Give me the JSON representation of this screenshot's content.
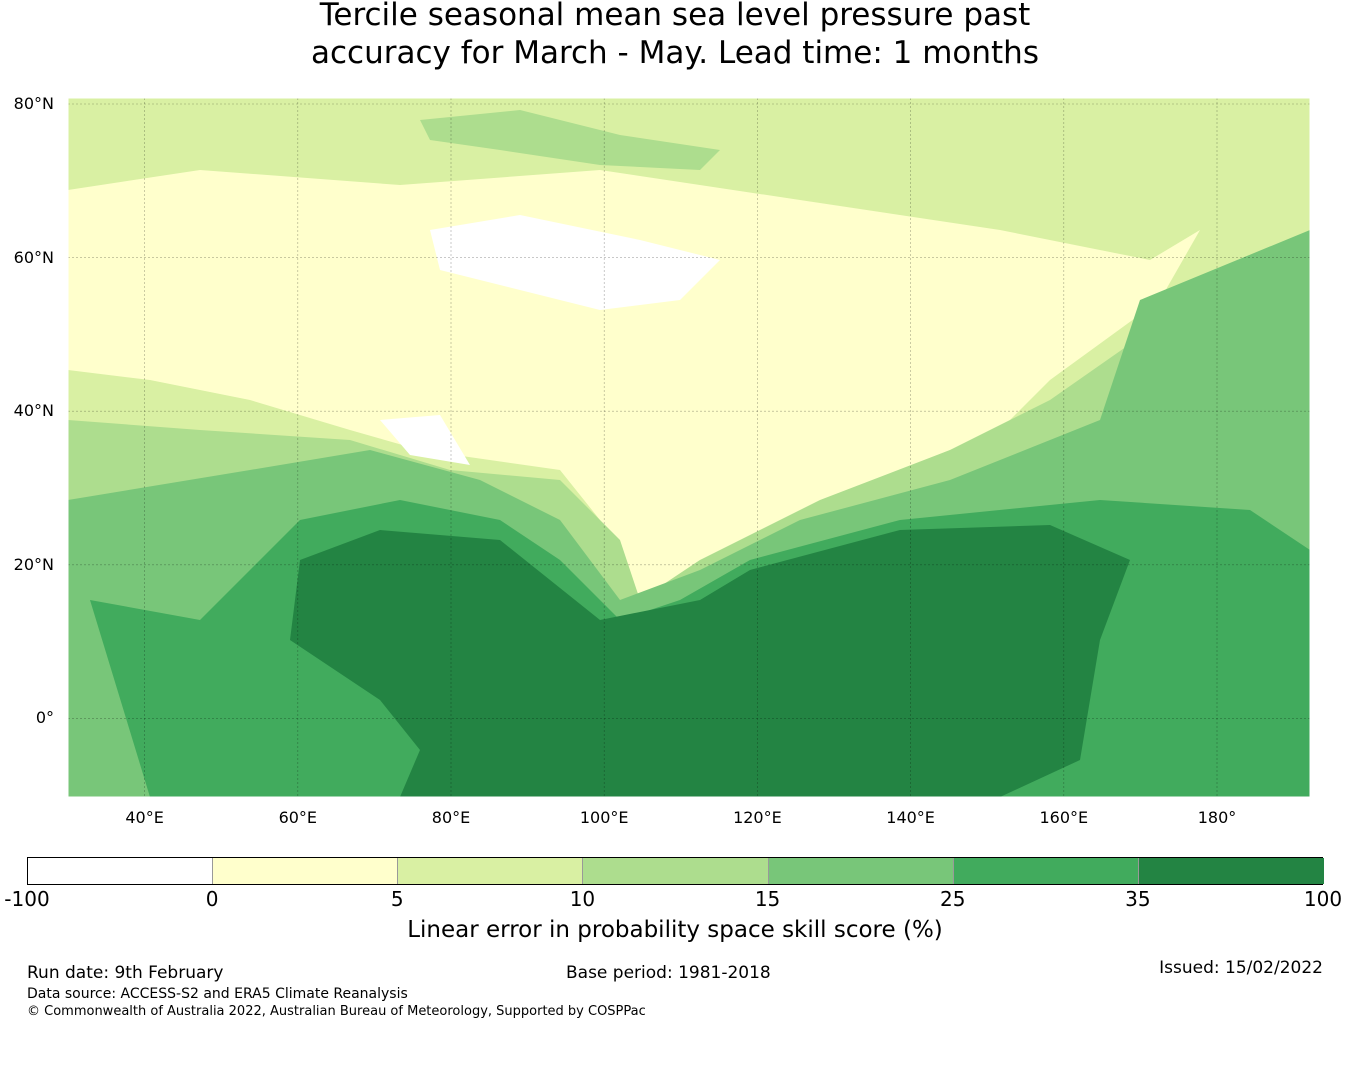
{
  "title_line1": "Tercile seasonal mean sea level pressure past",
  "title_line2": "accuracy for March - May. Lead time: 1 months",
  "lat_labels": [
    "80°N",
    "60°N",
    "40°N",
    "20°N",
    "0°"
  ],
  "lon_labels": [
    "40°E",
    "60°E",
    "80°E",
    "100°E",
    "120°E",
    "140°E",
    "160°E",
    "180°"
  ],
  "colorbar": {
    "label": "Linear error in probability space skill score (%)",
    "ticks": [
      "-100",
      "0",
      "5",
      "10",
      "15",
      "25",
      "35",
      "100"
    ],
    "colors": [
      "#ffffff",
      "#ffffcc",
      "#d9f0a3",
      "#addd8e",
      "#78c679",
      "#41ab5d",
      "#238443"
    ]
  },
  "footer": {
    "run_date": "Run date: 9th February",
    "base_period": "Base period: 1981-2018",
    "issued": "Issued: 15/02/2022",
    "data_source": "Data source: ACCESS-S2 and ERA5 Climate Reanalysis",
    "copyright": "© Commonwealth of Australia 2022, Australian Bureau of Meteorology, Supported by COSPPac"
  }
}
